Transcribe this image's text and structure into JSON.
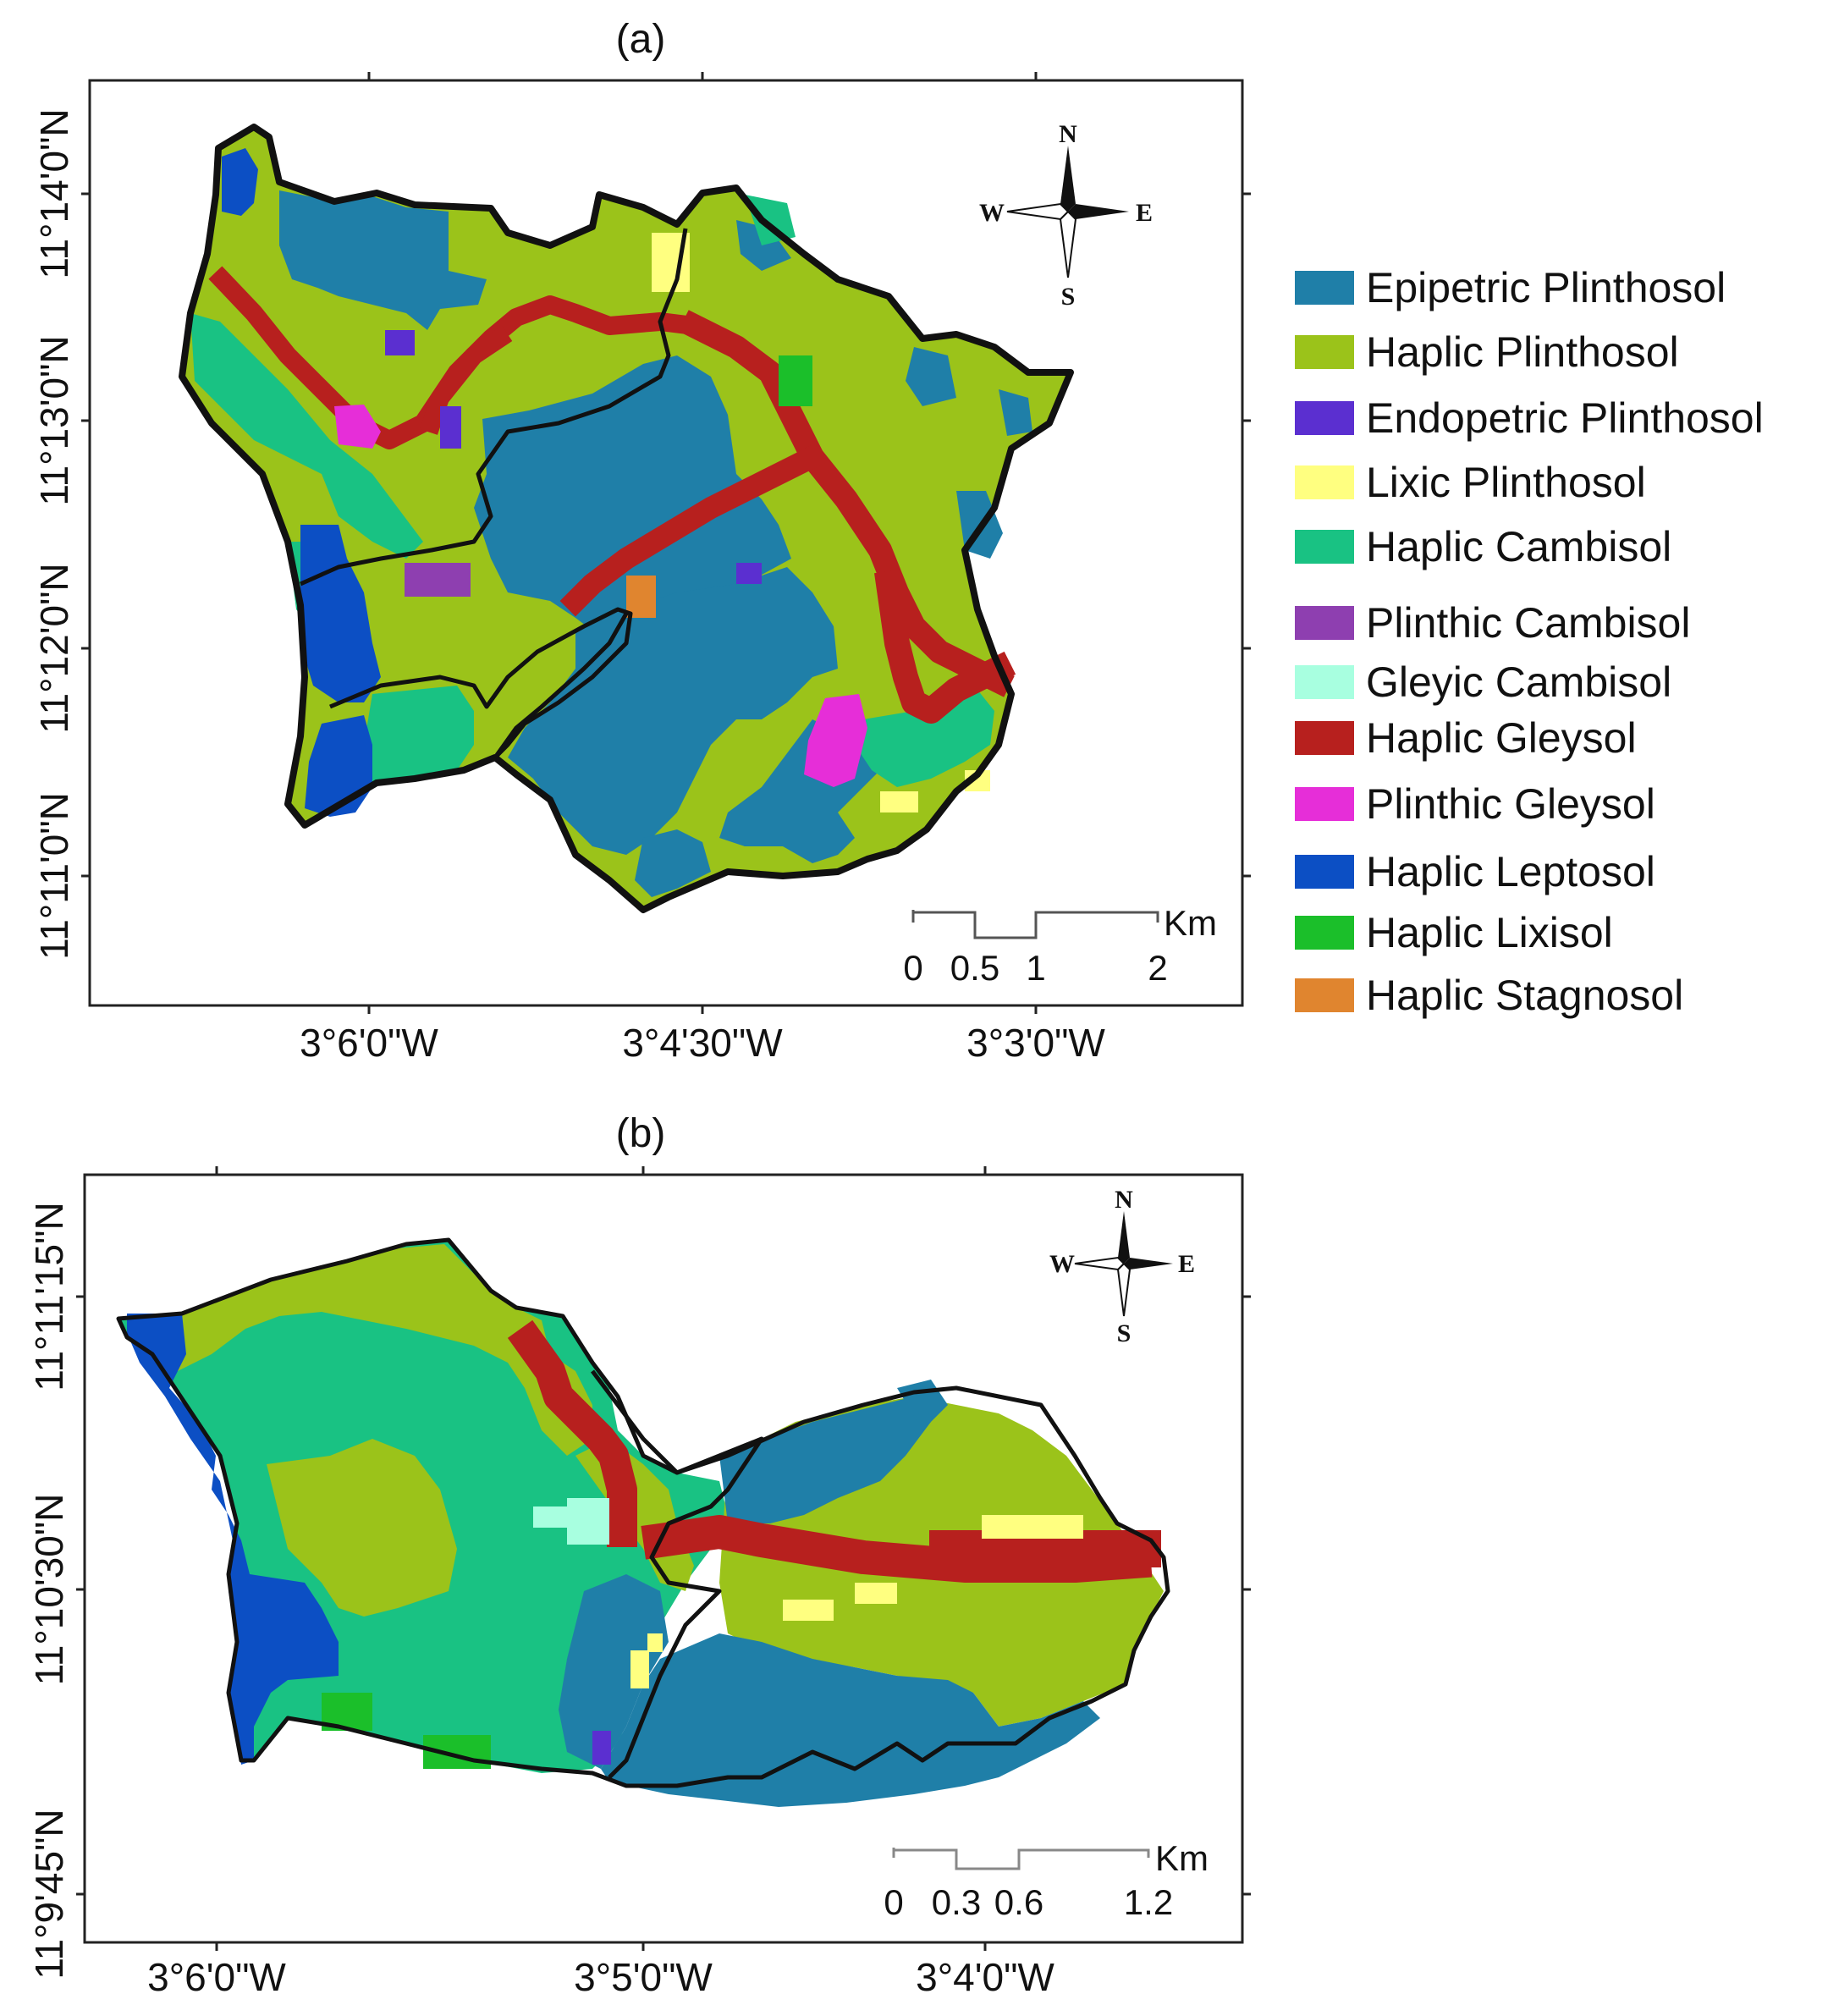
{
  "panel_a": {
    "title": "(a)",
    "x_ticks": [
      "3°6'0\"W",
      "3°4'30\"W",
      "3°3'0\"W"
    ],
    "y_ticks": [
      "11°14'0\"N",
      "11°13'0\"N",
      "11°12'0\"N",
      "11°11'0\"N"
    ],
    "compass": {
      "n": "N",
      "s": "S",
      "e": "E",
      "w": "W"
    },
    "scale": {
      "labels": [
        "0",
        "0.5",
        "1",
        "2"
      ],
      "unit": "Km"
    }
  },
  "panel_b": {
    "title": "(b)",
    "x_ticks": [
      "3°6'0\"W",
      "3°5'0\"W",
      "3°4'0\"W"
    ],
    "y_ticks": [
      "11°11'15\"N",
      "11°10'30\"N",
      "11°9'45\"N"
    ],
    "compass": {
      "n": "N",
      "s": "S",
      "e": "E",
      "w": "W"
    },
    "scale": {
      "labels": [
        "0",
        "0.3",
        "0.6",
        "1.2"
      ],
      "unit": "Km"
    }
  },
  "legend": [
    {
      "label": "Epipetric Plinthosol",
      "color": "#1f7fa8"
    },
    {
      "label": "Haplic Plinthosol",
      "color": "#9bc31a"
    },
    {
      "label": "Endopetric Plinthosol",
      "color": "#5b2fd0"
    },
    {
      "label": "Lixic Plinthosol",
      "color": "#ffff80"
    },
    {
      "label": "Haplic Cambisol",
      "color": "#19c283"
    },
    {
      "label": "Plinthic Cambisol",
      "color": "#8e3fb0"
    },
    {
      "label": "Gleyic Cambisol",
      "color": "#a8ffe0"
    },
    {
      "label": "Haplic Gleysol",
      "color": "#b7201e"
    },
    {
      "label": "Plinthic Gleysol",
      "color": "#e62ed8"
    },
    {
      "label": "Haplic Leptosol",
      "color": "#0c4fc4"
    },
    {
      "label": "Haplic Lixisol",
      "color": "#1bbf2a"
    },
    {
      "label": "Haplic Stagnosol",
      "color": "#e0852f"
    }
  ]
}
